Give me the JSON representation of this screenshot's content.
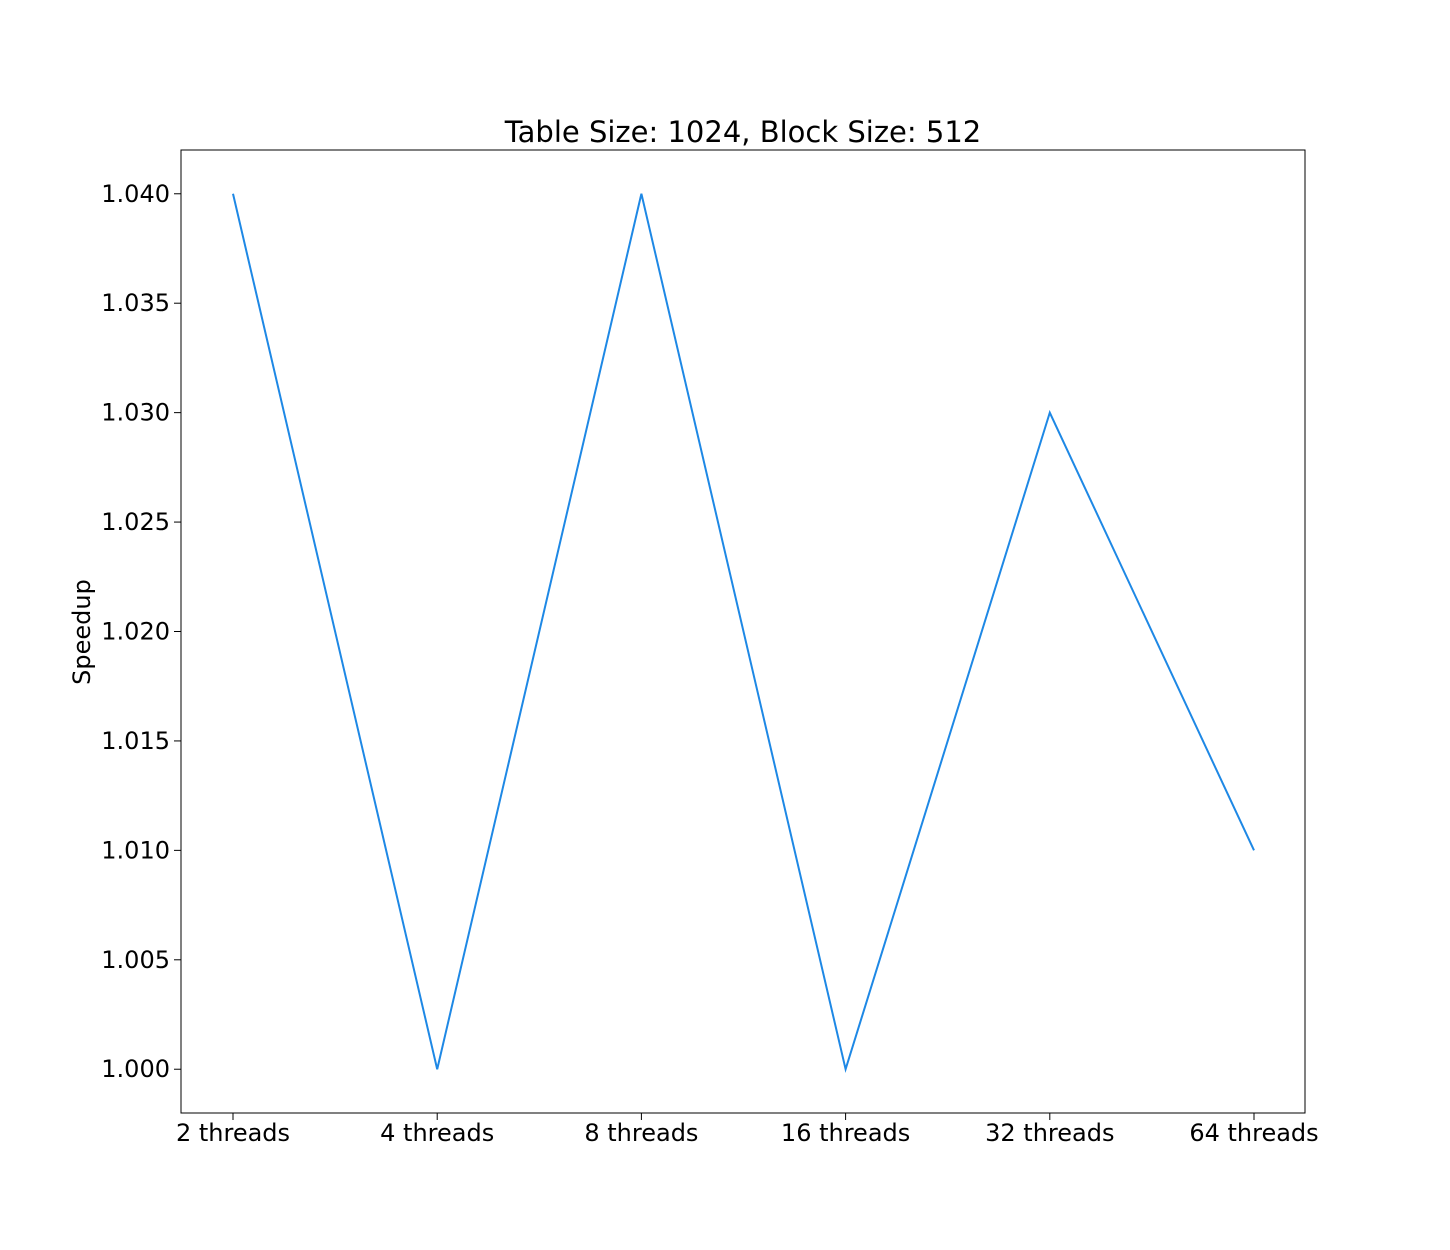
{
  "chart_data": {
    "type": "line",
    "title": "Table Size: 1024, Block Size: 512",
    "xlabel": "",
    "ylabel": "Speedup",
    "categories": [
      "2 threads",
      "4 threads",
      "8 threads",
      "16 threads",
      "32 threads",
      "64 threads"
    ],
    "series": [
      {
        "values": [
          1.04,
          1.0,
          1.04,
          1.0,
          1.03,
          1.01
        ],
        "color": "#1e88e5"
      }
    ],
    "ylim": [
      0.998,
      1.042
    ],
    "yticks": [
      "1.000",
      "1.005",
      "1.010",
      "1.015",
      "1.020",
      "1.025",
      "1.030",
      "1.035",
      "1.040"
    ],
    "grid": false,
    "legend": "none"
  }
}
